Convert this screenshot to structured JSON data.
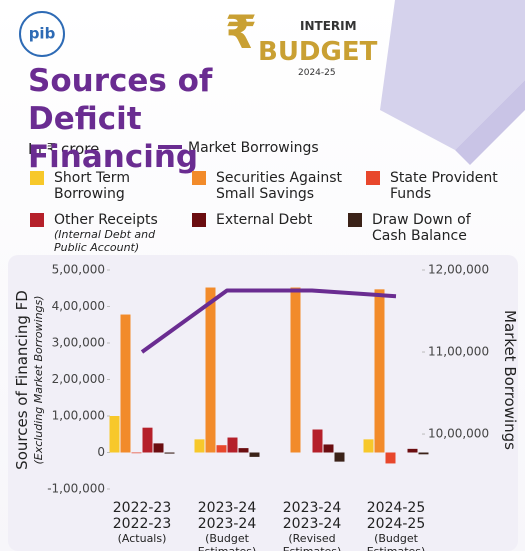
{
  "header": {
    "logo": "pib",
    "badge_top": "INTERIM",
    "badge_main": "BUDGET",
    "badge_year": "2024-25"
  },
  "chart_data": {
    "type": "bar",
    "title": "Sources of Deficit Financing",
    "units": "In ₹ crore",
    "categories": [
      "2022-23",
      "2023-24",
      "2023-24",
      "2024-25"
    ],
    "category_notes": [
      "(Actuals)",
      "(Budget Estimates)",
      "(Revised Estimates)",
      "(Budget Estimates)"
    ],
    "y_label": "Sources of Financing FD",
    "y_label_note": "(Excluding Market Borrowings)",
    "y2_label": "Market Borrowings",
    "legend_note": "(Internal Debt and Public Account)",
    "ylim": [
      -100000,
      500000
    ],
    "yticks": [
      {
        "value": -100000,
        "label": "-1,00,000"
      },
      0,
      {
        "value": 100000,
        "label": "1,00,000"
      },
      {
        "value": 200000,
        "label": "2,00,000"
      },
      {
        "value": 300000,
        "label": "3,00,000"
      },
      {
        "value": 400000,
        "label": "4,00,000"
      },
      {
        "value": 500000,
        "label": "5,00,000"
      }
    ],
    "y2lim": [
      933000,
      1200000
    ],
    "y2ticks": [
      {
        "value": 1000000,
        "label": "10,00,000"
      },
      {
        "value": 1100000,
        "label": "11,00,000"
      },
      {
        "value": 1200000,
        "label": "12,00,000"
      }
    ],
    "series": [
      {
        "name": "Short Term Borrowing",
        "color": "#f7c82a",
        "values": [
          100000,
          36000,
          0,
          36000
        ]
      },
      {
        "name": "Securities Against Small Savings",
        "color": "#f28b2a",
        "values": [
          378000,
          452000,
          452000,
          447000
        ]
      },
      {
        "name": "State Provident Funds",
        "color": "#e8472c",
        "values": [
          -2000,
          20000,
          0,
          -30000
        ]
      },
      {
        "name": "Other Receipts",
        "color": "#b5202a",
        "values": [
          68000,
          41000,
          63000,
          0
        ]
      },
      {
        "name": "External Debt",
        "color": "#6b0d10",
        "values": [
          25000,
          12000,
          22000,
          10000
        ]
      },
      {
        "name": "Draw Down of Cash Balance",
        "color": "#3b2218",
        "values": [
          -3000,
          -12000,
          -25000,
          -5000
        ]
      },
      {
        "name": "Market Borrowings",
        "color": "#6a2c91",
        "type": "line",
        "axis": "y2",
        "values": [
          1100000,
          1175000,
          1175000,
          1168000
        ]
      }
    ]
  }
}
